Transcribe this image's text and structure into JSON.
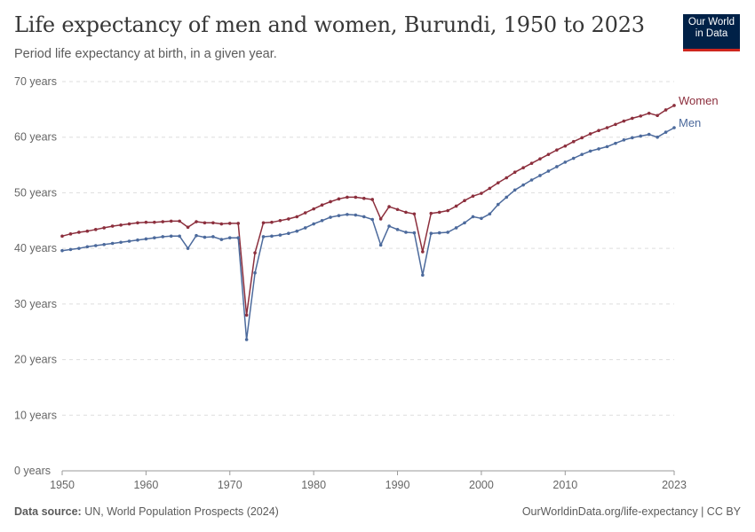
{
  "header": {
    "title": "Life expectancy of men and women, Burundi, 1950 to 2023",
    "subtitle": "Period life expectancy at birth, in a given year.",
    "logo_line1": "Our World",
    "logo_line2": "in Data"
  },
  "footer": {
    "source_label": "Data source:",
    "source_text": " UN, World Population Prospects (2024)",
    "link_text": "OurWorldinData.org/life-expectancy | CC BY"
  },
  "colors": {
    "women": "#8c2f3d",
    "men": "#4c6a9c",
    "grid": "#dddddd",
    "axis_text": "#666666"
  },
  "chart_data": {
    "type": "line",
    "title": "Life expectancy of men and women, Burundi, 1950 to 2023",
    "subtitle": "Period life expectancy at birth, in a given year.",
    "ylim": [
      0,
      70
    ],
    "xlim": [
      1950,
      2023
    ],
    "y_ticks": [
      0,
      10,
      20,
      30,
      40,
      50,
      60,
      70
    ],
    "y_tick_labels": [
      "0 years",
      "10 years",
      "20 years",
      "30 years",
      "40 years",
      "50 years",
      "60 years",
      "70 years"
    ],
    "x_ticks": [
      1950,
      1960,
      1970,
      1980,
      1990,
      2000,
      2010,
      2023
    ],
    "x_tick_labels": [
      "1950",
      "1960",
      "1970",
      "1980",
      "1990",
      "2000",
      "2010",
      "2023"
    ],
    "grid": true,
    "legend": "labels at line ends (right)",
    "x": [
      1950,
      1951,
      1952,
      1953,
      1954,
      1955,
      1956,
      1957,
      1958,
      1959,
      1960,
      1961,
      1962,
      1963,
      1964,
      1965,
      1966,
      1967,
      1968,
      1969,
      1970,
      1971,
      1972,
      1973,
      1974,
      1975,
      1976,
      1977,
      1978,
      1979,
      1980,
      1981,
      1982,
      1983,
      1984,
      1985,
      1986,
      1987,
      1988,
      1989,
      1990,
      1991,
      1992,
      1993,
      1994,
      1995,
      1996,
      1997,
      1998,
      1999,
      2000,
      2001,
      2002,
      2003,
      2004,
      2005,
      2006,
      2007,
      2008,
      2009,
      2010,
      2011,
      2012,
      2013,
      2014,
      2015,
      2016,
      2017,
      2018,
      2019,
      2020,
      2021,
      2022,
      2023
    ],
    "series": [
      {
        "name": "Women",
        "color": "#8c2f3d",
        "values": [
          42.2,
          42.6,
          42.9,
          43.1,
          43.4,
          43.7,
          44.0,
          44.2,
          44.4,
          44.6,
          44.7,
          44.7,
          44.8,
          44.9,
          44.9,
          43.8,
          44.8,
          44.6,
          44.6,
          44.4,
          44.5,
          44.5,
          28.0,
          39.2,
          44.6,
          44.7,
          45.0,
          45.3,
          45.7,
          46.4,
          47.1,
          47.8,
          48.4,
          48.9,
          49.2,
          49.2,
          49.0,
          48.8,
          45.3,
          47.5,
          47.0,
          46.5,
          46.2,
          39.4,
          46.3,
          46.5,
          46.8,
          47.6,
          48.6,
          49.4,
          49.9,
          50.8,
          51.8,
          52.7,
          53.7,
          54.5,
          55.3,
          56.1,
          56.9,
          57.7,
          58.4,
          59.2,
          59.9,
          60.6,
          61.2,
          61.7,
          62.3,
          62.9,
          63.4,
          63.8,
          64.3,
          63.9,
          64.9,
          65.7
        ]
      },
      {
        "name": "Men",
        "color": "#4c6a9c",
        "values": [
          39.6,
          39.8,
          40.0,
          40.3,
          40.5,
          40.7,
          40.9,
          41.1,
          41.3,
          41.5,
          41.7,
          41.9,
          42.1,
          42.2,
          42.2,
          40.0,
          42.3,
          42.0,
          42.1,
          41.6,
          41.9,
          41.9,
          23.6,
          35.6,
          42.1,
          42.2,
          42.4,
          42.7,
          43.1,
          43.7,
          44.4,
          45.0,
          45.6,
          45.9,
          46.1,
          46.0,
          45.7,
          45.2,
          40.6,
          44.0,
          43.4,
          42.9,
          42.8,
          35.2,
          42.7,
          42.8,
          42.9,
          43.7,
          44.6,
          45.7,
          45.4,
          46.2,
          47.9,
          49.2,
          50.5,
          51.4,
          52.3,
          53.1,
          53.9,
          54.7,
          55.5,
          56.2,
          56.9,
          57.5,
          57.9,
          58.3,
          58.9,
          59.5,
          59.9,
          60.2,
          60.5,
          60.0,
          60.9,
          61.7
        ]
      }
    ]
  }
}
